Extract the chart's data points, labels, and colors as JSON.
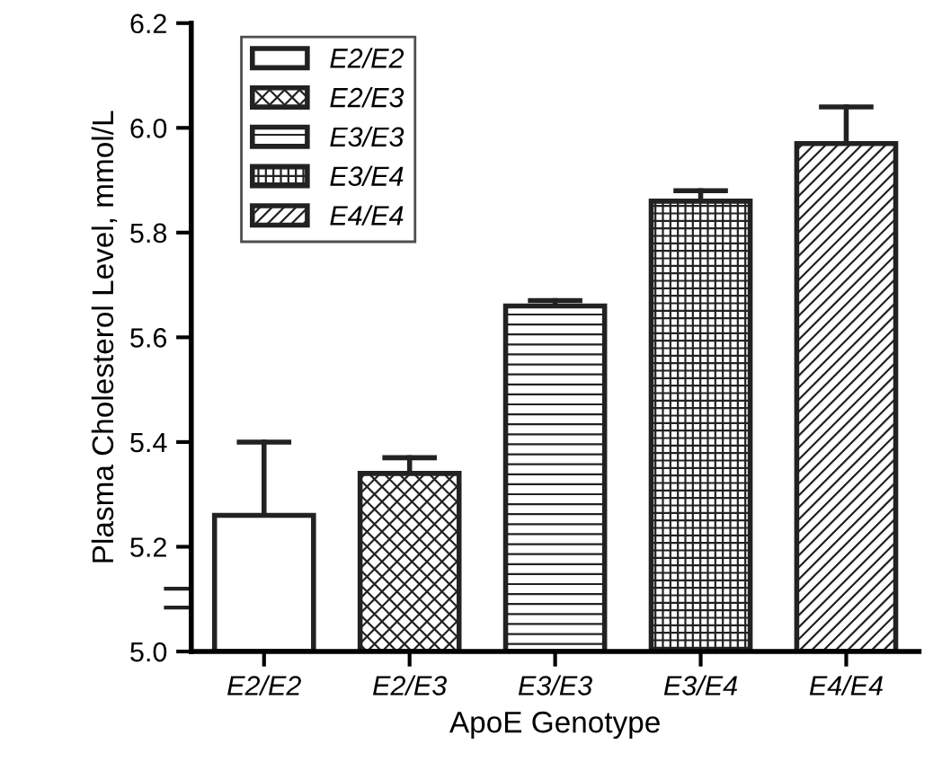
{
  "chart_data": {
    "type": "bar",
    "categories": [
      "E2/E2",
      "E2/E3",
      "E3/E3",
      "E3/E4",
      "E4/E4"
    ],
    "series": [
      {
        "name": "E2/E2",
        "color": "#ffffff",
        "values": [
          5.26,
          null,
          null,
          null,
          null
        ],
        "errors": [
          [
            5.26,
            5.4
          ],
          null,
          null,
          null,
          null
        ]
      },
      {
        "name": "E2/E3",
        "color": "#222222",
        "values": [
          null,
          5.34,
          null,
          null,
          null
        ],
        "errors": [
          null,
          [
            5.34,
            5.37
          ],
          null,
          null,
          null
        ]
      },
      {
        "name": "E3/E3",
        "color": "#222222",
        "values": [
          null,
          null,
          5.66,
          null,
          null
        ],
        "errors": [
          null,
          null,
          [
            5.66,
            5.67
          ],
          null,
          null
        ]
      },
      {
        "name": "E3/E4",
        "color": "#222222",
        "values": [
          null,
          null,
          null,
          5.86,
          null
        ],
        "errors": [
          null,
          null,
          null,
          [
            5.86,
            5.88
          ],
          null
        ]
      },
      {
        "name": "E4/E4",
        "color": "#222222",
        "values": [
          null,
          null,
          null,
          null,
          5.97
        ],
        "errors": [
          null,
          null,
          null,
          null,
          [
            5.97,
            6.04
          ]
        ]
      }
    ],
    "xlabel": "ApoE Genotype",
    "ylabel": "Plasma Cholesterol Level, mmol/L",
    "ylim": [
      5.0,
      6.2
    ],
    "yticks": [
      {
        "value": 5.0,
        "label": "5.0"
      },
      5.2,
      5.4,
      5.6,
      5.8,
      {
        "value": 6.0,
        "label": "6.0"
      },
      6.2
    ],
    "legend": "top left",
    "grid": false
  }
}
